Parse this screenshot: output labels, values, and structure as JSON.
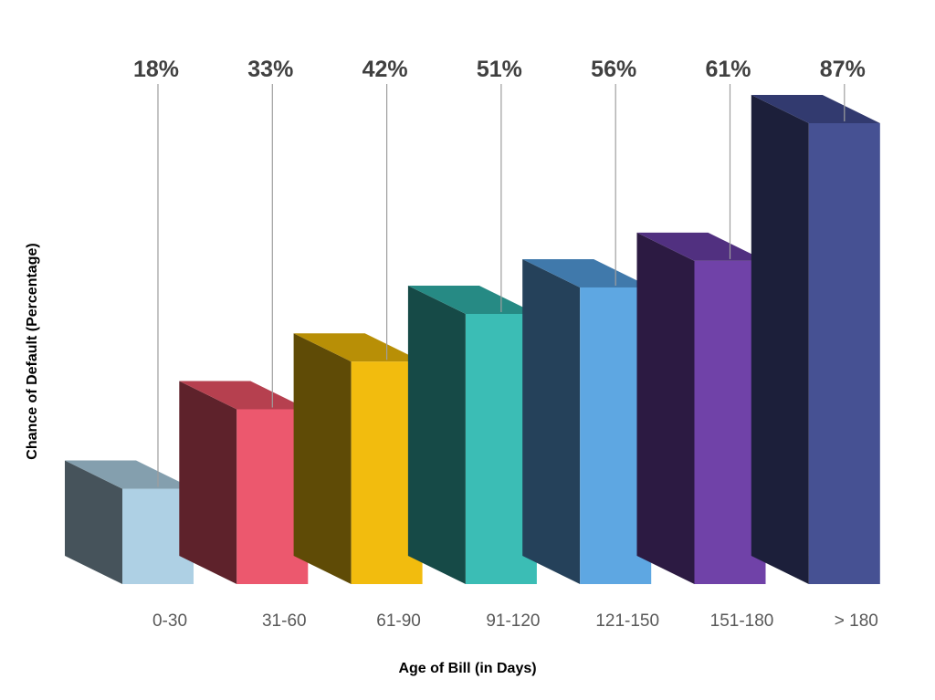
{
  "chart_data": {
    "type": "bar",
    "categories": [
      "0-30",
      "31-60",
      "61-90",
      "91-120",
      "121-150",
      "151-180",
      "> 180"
    ],
    "values": [
      18,
      33,
      42,
      51,
      56,
      61,
      87
    ],
    "value_labels": [
      "18%",
      "33%",
      "42%",
      "51%",
      "56%",
      "61%",
      "87%"
    ],
    "xlabel": "Age of Bill (in Days)",
    "ylabel": "Chance of Default (Percentage)",
    "ylim": [
      0,
      100
    ],
    "grid": false,
    "legend": "none",
    "style": "3d",
    "colors": [
      {
        "front": "#aed0e4",
        "side": "#46535b",
        "top": "#849fae"
      },
      {
        "front": "#ec586e",
        "side": "#5e222b",
        "top": "#b6404f"
      },
      {
        "front": "#f2bc0e",
        "side": "#5f4b06",
        "top": "#b88f06"
      },
      {
        "front": "#3bbdb5",
        "side": "#164a47",
        "top": "#268a84"
      },
      {
        "front": "#5ea7e2",
        "side": "#25415a",
        "top": "#4079ab"
      },
      {
        "front": "#7042a8",
        "side": "#2c1a42",
        "top": "#513080"
      },
      {
        "front": "#465193",
        "side": "#1c1f3a",
        "top": "#323a6f"
      }
    ]
  }
}
